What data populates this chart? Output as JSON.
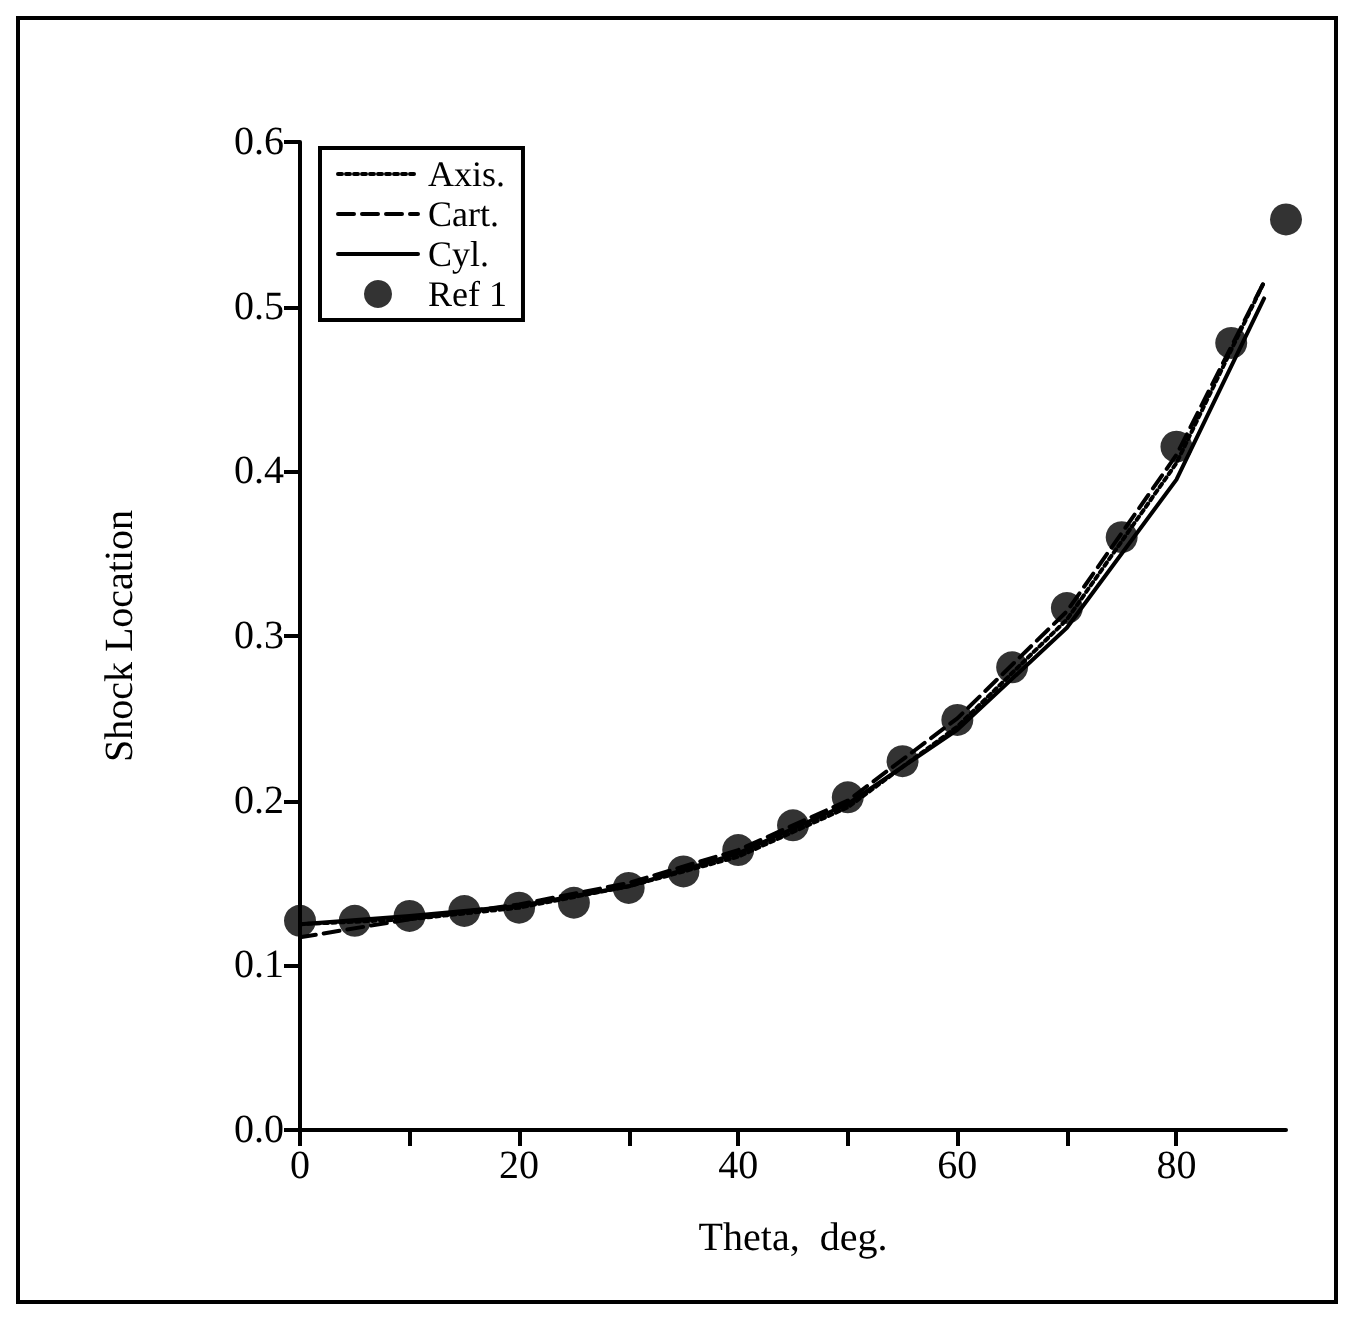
{
  "chart_data": {
    "type": "line",
    "xlabel": "Theta,  deg.",
    "ylabel": "Shock Location",
    "xlim": [
      0,
      90
    ],
    "ylim": [
      0,
      0.6
    ],
    "xticks": [
      0,
      {
        "value": 10,
        "label": null
      },
      20,
      {
        "value": 30,
        "label": null
      },
      40,
      {
        "value": 50,
        "label": null
      },
      60,
      {
        "value": 70,
        "label": null
      },
      80
    ],
    "yticks": [
      {
        "value": 0,
        "label": "0.0"
      },
      0.1,
      0.2,
      0.3,
      0.4,
      0.5,
      0.6
    ],
    "grid": false,
    "legend": "top left",
    "marker": "none",
    "series": [
      {
        "name": "Axis.",
        "line_style": "dotted",
        "color": "#000000",
        "x": [
          0,
          10,
          20,
          30,
          40,
          50,
          60,
          70,
          80,
          88
        ],
        "values": [
          0.125,
          0.128,
          0.135,
          0.148,
          0.166,
          0.196,
          0.245,
          0.31,
          0.405,
          0.515
        ]
      },
      {
        "name": "Cart.",
        "line_style": "dashed",
        "color": "#000000",
        "x": [
          0,
          10,
          20,
          30,
          40,
          50,
          60,
          70,
          80,
          88
        ],
        "values": [
          0.117,
          0.128,
          0.137,
          0.15,
          0.17,
          0.2,
          0.25,
          0.315,
          0.41,
          0.515
        ]
      },
      {
        "name": "Cyl.",
        "line_style": "solid",
        "color": "#000000",
        "x": [
          0,
          10,
          20,
          30,
          40,
          50,
          60,
          70,
          80,
          88
        ],
        "values": [
          0.125,
          0.13,
          0.136,
          0.148,
          0.168,
          0.198,
          0.243,
          0.305,
          0.395,
          0.505
        ]
      },
      {
        "name": "Ref 1",
        "type": "scatter",
        "marker": "circle",
        "color": "#000000",
        "x": [
          0,
          5,
          10,
          15,
          20,
          25,
          30,
          35,
          40,
          45,
          50,
          55,
          60,
          65,
          70,
          75,
          80,
          85,
          90
        ],
        "values": [
          0.127,
          0.127,
          0.13,
          0.133,
          0.135,
          0.138,
          0.147,
          0.157,
          0.17,
          0.185,
          0.202,
          0.224,
          0.249,
          0.281,
          0.317,
          0.36,
          0.415,
          0.478,
          0.553
        ]
      }
    ]
  }
}
